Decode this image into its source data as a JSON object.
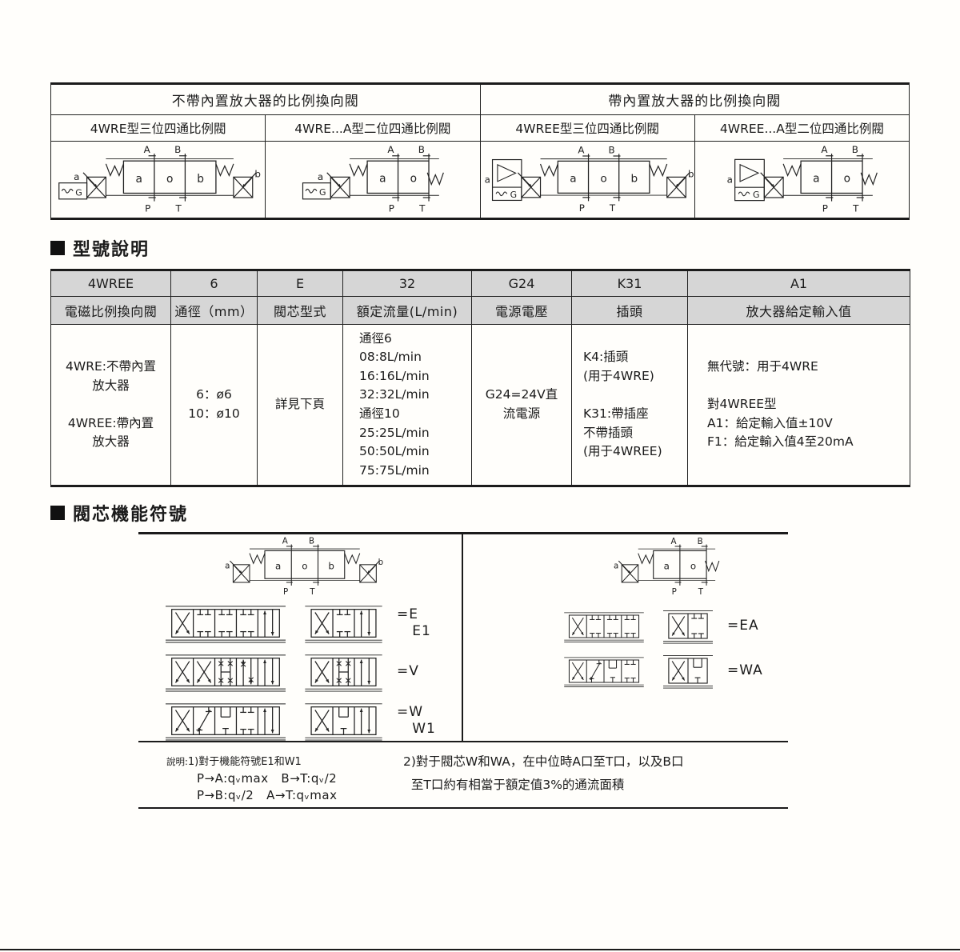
{
  "top_table": {
    "group_titles": [
      "不帶內置放大器的比例換向閥",
      "帶內置放大器的比例換向閥"
    ],
    "type_labels": [
      "4WRE型三位四通比例閥",
      "4WRE...A型二位四通比例閥",
      "4WREE型三位四通比例閥",
      "4WREE...A型二位四通比例閥"
    ]
  },
  "model_section": {
    "heading": "型號說明",
    "codes": [
      "4WREE",
      "6",
      "E",
      "32",
      "G24",
      "K31",
      "A1"
    ],
    "headers": [
      "電磁比例換向閥",
      "通徑（mm）",
      "閥芯型式",
      "額定流量(L/min)",
      "電源電壓",
      "插頭",
      "放大器給定輸入值"
    ],
    "cells": {
      "valve_type": "4WRE:不帶內置\n放大器\n\n4WREE:帶內置\n放大器",
      "size": "6：ø6\n10：ø10",
      "spool": "詳見下頁",
      "flow": "通徑6\n08:8L/min\n16:16L/min\n32:32L/min\n通徑10\n25:25L/min\n50:50L/min\n75:75L/min",
      "power": "G24=24V直\n流電源",
      "plug": "K4:插頭\n(用于4WRE)\n\nK31:帶插座\n不帶插頭\n(用于4WREE)",
      "amp_input": "無代號：用于4WRE\n\n對4WREE型\nA1：給定輸入值±10V\nF1：給定輸入值4至20mA"
    }
  },
  "spool_section": {
    "heading": "閥芯機能符號",
    "left_rows": [
      {
        "label": "=E\n   E1",
        "wide": [
          "X",
          "TT",
          "TT",
          "TT",
          "II"
        ],
        "narrow": [
          "X",
          "TT",
          "II"
        ]
      },
      {
        "label": "=V",
        "wide": [
          "X",
          "X",
          "HX",
          "IX",
          "II"
        ],
        "narrow": [
          "X",
          "HX",
          "II"
        ]
      },
      {
        "label": "=W\n   W1",
        "wide": [
          "X",
          "DG",
          "TH",
          "TT",
          "II"
        ],
        "narrow": [
          "X",
          "TH",
          "II"
        ]
      }
    ],
    "right_rows": [
      {
        "label": "=EA",
        "wide": [
          "X",
          "TT",
          "TT",
          "TT"
        ],
        "narrow": [
          "X",
          "TT"
        ]
      },
      {
        "label": "=WA",
        "wide": [
          "X",
          "DG",
          "TH",
          "TT"
        ],
        "narrow": [
          "X",
          "TH"
        ]
      }
    ],
    "notes": {
      "n1_prefix": "說明:",
      "n1_title": "1)對于機能符號E1和W1",
      "n1_f1": "P→A:qᵥmax   B→T:qᵥ/2",
      "n1_f2": "P→B:qᵥ/2   A→T:qᵥmax",
      "n2": "2)對于閥芯W和WA，在中位時A口至T口，以及B口\n  至T口約有相當于額定值3%的通流面積"
    }
  },
  "diagrams": {
    "labels": {
      "A": "A",
      "B": "B",
      "P": "P",
      "T": "T",
      "a": "a",
      "b": "b",
      "G": "G"
    },
    "top_valves": [
      {
        "positions": 3,
        "amp": false,
        "coil": true,
        "chambers": [
          "a",
          "o",
          "b"
        ]
      },
      {
        "positions": 2,
        "amp": false,
        "coil": true,
        "chambers": [
          "a",
          "o"
        ]
      },
      {
        "positions": 3,
        "amp": true,
        "coil": true,
        "chambers": [
          "a",
          "o",
          "b"
        ]
      },
      {
        "positions": 2,
        "amp": true,
        "coil": true,
        "chambers": [
          "a",
          "o"
        ]
      }
    ],
    "spool_left_valve": {
      "positions": 3,
      "amp": false,
      "coil": false,
      "chambers": [
        "a",
        "o",
        "b"
      ]
    },
    "spool_right_valve": {
      "positions": 2,
      "amp": false,
      "coil": false,
      "chambers": [
        "a",
        "o"
      ]
    }
  }
}
